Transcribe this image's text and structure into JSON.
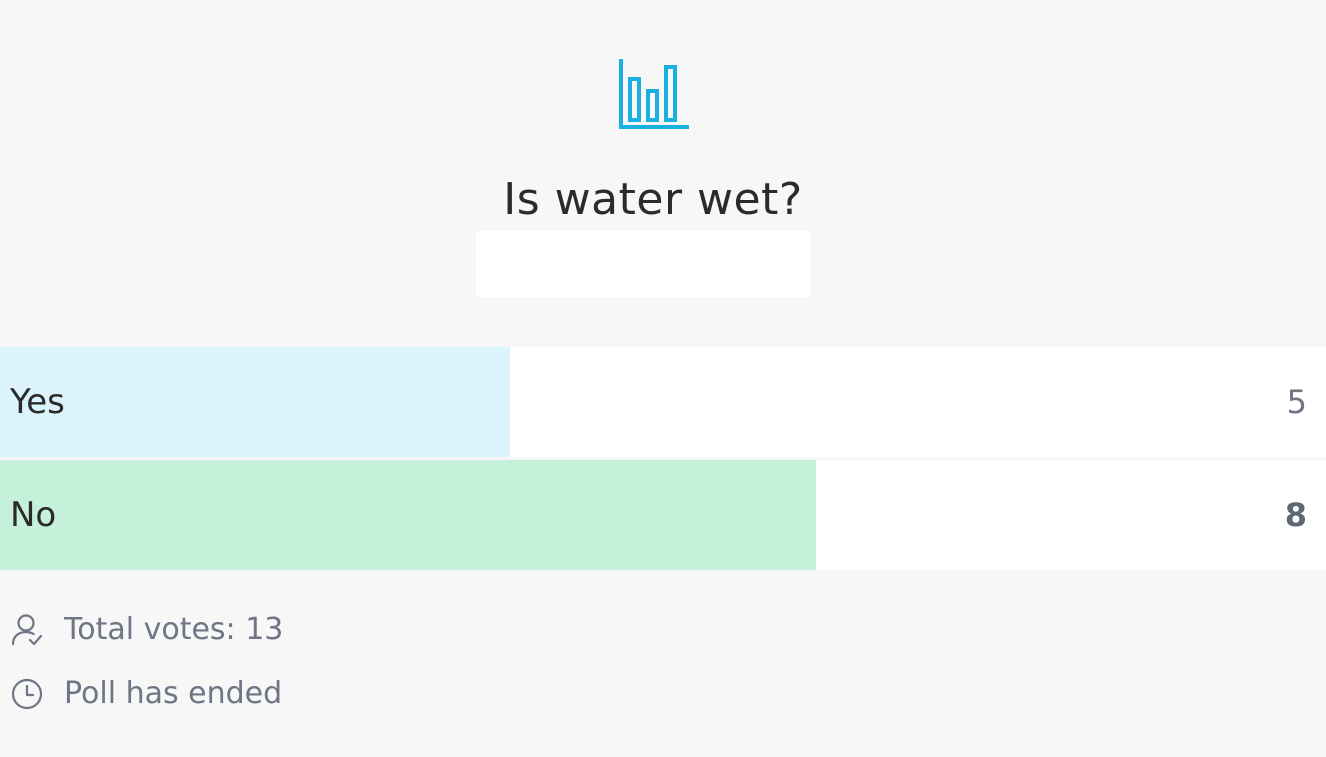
{
  "poll": {
    "icon": "bar-chart-icon",
    "question": "Is water wet?",
    "options": [
      {
        "label": "Yes",
        "count": "5",
        "votes": 5,
        "color": "#daf3fd"
      },
      {
        "label": "No",
        "count": "8",
        "votes": 8,
        "color": "#c5f1da"
      }
    ],
    "total_votes_text": "Total votes: 13",
    "total_votes": 13,
    "status_text": "Poll has ended",
    "accent_color": "#1ab0e0"
  }
}
